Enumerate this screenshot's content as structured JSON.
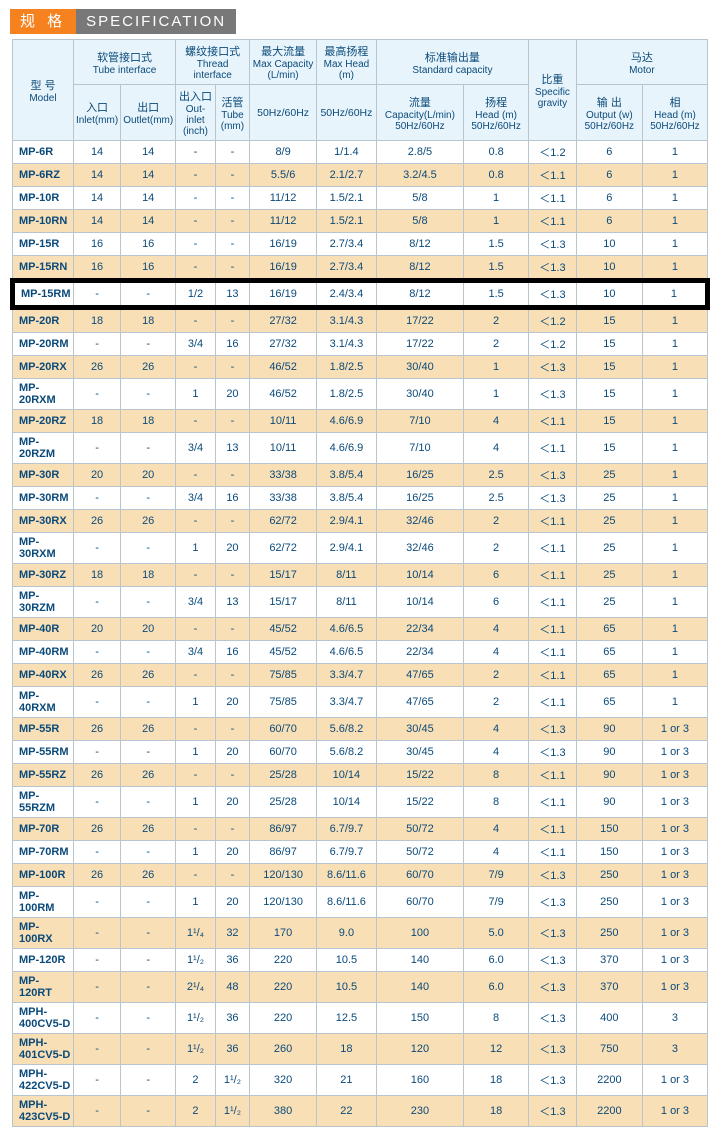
{
  "title_cn": "规 格",
  "title_en": "SPECIFICATION",
  "headers": {
    "model_cn": "型 号",
    "model_en": "Model",
    "tube_cn": "软管接口式",
    "tube_en": "Tube interface",
    "thread_cn": "螺纹接口式",
    "thread_en": "Thread interface",
    "maxcap_cn": "最大流量",
    "maxcap_en": "Max Capacity (L/min)",
    "maxhead_cn": "最高扬程",
    "maxhead_en": "Max Head (m)",
    "std_cn": "标准输出量",
    "std_en": "Standard capacity",
    "sg_cn": "比重",
    "sg_en": "Specific gravity",
    "motor_cn": "马达",
    "motor_en": "Motor",
    "inlet_cn": "入口",
    "inlet_en": "Inlet(mm)",
    "outlet_cn": "出口",
    "outlet_en": "Outlet(mm)",
    "oi_cn": "出入口",
    "oi_en": "Out-inlet (inch)",
    "tube2_cn": "活管",
    "tube2_en": "Tube (mm)",
    "hz1": "50Hz/60Hz",
    "hz2": "50Hz/60Hz",
    "cap_cn": "流量",
    "cap_en": "Capacity(L/min) 50Hz/60Hz",
    "head_cn": "扬程",
    "head_en": "Head (m) 50Hz/60Hz",
    "out_cn": "输 出",
    "out_en": "Output (w) 50Hz/60Hz",
    "ph_cn": "相",
    "ph_en": "Head (m) 50Hz/60Hz"
  },
  "rows": [
    {
      "m": "MP-6R",
      "c": [
        "14",
        "14",
        "-",
        "-",
        "8/9",
        "1/1.4",
        "2.8/5",
        "0.8",
        "＜1.2",
        "6",
        "1"
      ],
      "e": 0
    },
    {
      "m": "MP-6RZ",
      "c": [
        "14",
        "14",
        "-",
        "-",
        "5.5/6",
        "2.1/2.7",
        "3.2/4.5",
        "0.8",
        "＜1.1",
        "6",
        "1"
      ],
      "e": 1
    },
    {
      "m": "MP-10R",
      "c": [
        "14",
        "14",
        "-",
        "-",
        "11/12",
        "1.5/2.1",
        "5/8",
        "1",
        "＜1.1",
        "6",
        "1"
      ],
      "e": 0
    },
    {
      "m": "MP-10RN",
      "c": [
        "14",
        "14",
        "-",
        "-",
        "11/12",
        "1.5/2.1",
        "5/8",
        "1",
        "＜1.1",
        "6",
        "1"
      ],
      "e": 1
    },
    {
      "m": "MP-15R",
      "c": [
        "16",
        "16",
        "-",
        "-",
        "16/19",
        "2.7/3.4",
        "8/12",
        "1.5",
        "＜1.3",
        "10",
        "1"
      ],
      "e": 0
    },
    {
      "m": "MP-15RN",
      "c": [
        "16",
        "16",
        "-",
        "-",
        "16/19",
        "2.7/3.4",
        "8/12",
        "1.5",
        "＜1.3",
        "10",
        "1"
      ],
      "e": 1
    },
    {
      "m": "MP-15RM",
      "c": [
        "-",
        "-",
        "1/2",
        "13",
        "16/19",
        "2.4/3.4",
        "8/12",
        "1.5",
        "＜1.3",
        "10",
        "1"
      ],
      "hl": true
    },
    {
      "m": "MP-20R",
      "c": [
        "18",
        "18",
        "-",
        "-",
        "27/32",
        "3.1/4.3",
        "17/22",
        "2",
        "＜1.2",
        "15",
        "1"
      ],
      "e": 1
    },
    {
      "m": "MP-20RM",
      "c": [
        "-",
        "-",
        "3/4",
        "16",
        "27/32",
        "3.1/4.3",
        "17/22",
        "2",
        "＜1.2",
        "15",
        "1"
      ],
      "e": 0
    },
    {
      "m": "MP-20RX",
      "c": [
        "26",
        "26",
        "-",
        "-",
        "46/52",
        "1.8/2.5",
        "30/40",
        "1",
        "＜1.3",
        "15",
        "1"
      ],
      "e": 1
    },
    {
      "m": "MP-20RXM",
      "c": [
        "-",
        "-",
        "1",
        "20",
        "46/52",
        "1.8/2.5",
        "30/40",
        "1",
        "＜1.3",
        "15",
        "1"
      ],
      "e": 0
    },
    {
      "m": "MP-20RZ",
      "c": [
        "18",
        "18",
        "-",
        "-",
        "10/11",
        "4.6/6.9",
        "7/10",
        "4",
        "＜1.1",
        "15",
        "1"
      ],
      "e": 1
    },
    {
      "m": "MP-20RZM",
      "c": [
        "-",
        "-",
        "3/4",
        "13",
        "10/11",
        "4.6/6.9",
        "7/10",
        "4",
        "＜1.1",
        "15",
        "1"
      ],
      "e": 0
    },
    {
      "m": "MP-30R",
      "c": [
        "20",
        "20",
        "-",
        "-",
        "33/38",
        "3.8/5.4",
        "16/25",
        "2.5",
        "＜1.3",
        "25",
        "1"
      ],
      "e": 1
    },
    {
      "m": "MP-30RM",
      "c": [
        "-",
        "-",
        "3/4",
        "16",
        "33/38",
        "3.8/5.4",
        "16/25",
        "2.5",
        "＜1.3",
        "25",
        "1"
      ],
      "e": 0
    },
    {
      "m": "MP-30RX",
      "c": [
        "26",
        "26",
        "-",
        "-",
        "62/72",
        "2.9/4.1",
        "32/46",
        "2",
        "＜1.1",
        "25",
        "1"
      ],
      "e": 1
    },
    {
      "m": "MP-30RXM",
      "c": [
        "-",
        "-",
        "1",
        "20",
        "62/72",
        "2.9/4.1",
        "32/46",
        "2",
        "＜1.1",
        "25",
        "1"
      ],
      "e": 0
    },
    {
      "m": "MP-30RZ",
      "c": [
        "18",
        "18",
        "-",
        "-",
        "15/17",
        "8/11",
        "10/14",
        "6",
        "＜1.1",
        "25",
        "1"
      ],
      "e": 1
    },
    {
      "m": "MP-30RZM",
      "c": [
        "-",
        "-",
        "3/4",
        "13",
        "15/17",
        "8/11",
        "10/14",
        "6",
        "＜1.1",
        "25",
        "1"
      ],
      "e": 0
    },
    {
      "m": "MP-40R",
      "c": [
        "20",
        "20",
        "-",
        "-",
        "45/52",
        "4.6/6.5",
        "22/34",
        "4",
        "＜1.1",
        "65",
        "1"
      ],
      "e": 1
    },
    {
      "m": "MP-40RM",
      "c": [
        "-",
        "-",
        "3/4",
        "16",
        "45/52",
        "4.6/6.5",
        "22/34",
        "4",
        "＜1.1",
        "65",
        "1"
      ],
      "e": 0
    },
    {
      "m": "MP-40RX",
      "c": [
        "26",
        "26",
        "-",
        "-",
        "75/85",
        "3.3/4.7",
        "47/65",
        "2",
        "＜1.1",
        "65",
        "1"
      ],
      "e": 1
    },
    {
      "m": "MP-40RXM",
      "c": [
        "-",
        "-",
        "1",
        "20",
        "75/85",
        "3.3/4.7",
        "47/65",
        "2",
        "＜1.1",
        "65",
        "1"
      ],
      "e": 0
    },
    {
      "m": "MP-55R",
      "c": [
        "26",
        "26",
        "-",
        "-",
        "60/70",
        "5.6/8.2",
        "30/45",
        "4",
        "＜1.3",
        "90",
        "1 or 3"
      ],
      "e": 1
    },
    {
      "m": "MP-55RM",
      "c": [
        "-",
        "-",
        "1",
        "20",
        "60/70",
        "5.6/8.2",
        "30/45",
        "4",
        "＜1.3",
        "90",
        "1 or 3"
      ],
      "e": 0
    },
    {
      "m": "MP-55RZ",
      "c": [
        "26",
        "26",
        "-",
        "-",
        "25/28",
        "10/14",
        "15/22",
        "8",
        "＜1.1",
        "90",
        "1 or 3"
      ],
      "e": 1
    },
    {
      "m": "MP-55RZM",
      "c": [
        "-",
        "-",
        "1",
        "20",
        "25/28",
        "10/14",
        "15/22",
        "8",
        "＜1.1",
        "90",
        "1 or 3"
      ],
      "e": 0
    },
    {
      "m": "MP-70R",
      "c": [
        "26",
        "26",
        "-",
        "-",
        "86/97",
        "6.7/9.7",
        "50/72",
        "4",
        "＜1.1",
        "150",
        "1 or 3"
      ],
      "e": 1
    },
    {
      "m": "MP-70RM",
      "c": [
        "-",
        "-",
        "1",
        "20",
        "86/97",
        "6.7/9.7",
        "50/72",
        "4",
        "＜1.1",
        "150",
        "1 or 3"
      ],
      "e": 0
    },
    {
      "m": "MP-100R",
      "c": [
        "26",
        "26",
        "-",
        "-",
        "120/130",
        "8.6/11.6",
        "60/70",
        "7/9",
        "＜1.3",
        "250",
        "1 or 3"
      ],
      "e": 1
    },
    {
      "m": "MP-100RM",
      "c": [
        "-",
        "-",
        "1",
        "20",
        "120/130",
        "8.6/11.6",
        "60/70",
        "7/9",
        "＜1.3",
        "250",
        "1 or 3"
      ],
      "e": 0
    },
    {
      "m": "MP-100RX",
      "c": [
        "-",
        "-",
        "1¹/₄",
        "32",
        "170",
        "9.0",
        "100",
        "5.0",
        "＜1.3",
        "250",
        "1 or 3"
      ],
      "e": 1
    },
    {
      "m": "MP-120R",
      "c": [
        "-",
        "-",
        "1¹/₂",
        "36",
        "220",
        "10.5",
        "140",
        "6.0",
        "＜1.3",
        "370",
        "1 or 3"
      ],
      "e": 0
    },
    {
      "m": "MP-120RT",
      "c": [
        "-",
        "-",
        "2¹/₄",
        "48",
        "220",
        "10.5",
        "140",
        "6.0",
        "＜1.3",
        "370",
        "1 or 3"
      ],
      "e": 1
    },
    {
      "m": "MPH-400CV5-D",
      "c": [
        "-",
        "-",
        "1¹/₂",
        "36",
        "220",
        "12.5",
        "150",
        "8",
        "＜1.3",
        "400",
        "3"
      ],
      "e": 0
    },
    {
      "m": "MPH-401CV5-D",
      "c": [
        "-",
        "-",
        "1¹/₂",
        "36",
        "260",
        "18",
        "120",
        "12",
        "＜1.3",
        "750",
        "3"
      ],
      "e": 1
    },
    {
      "m": "MPH-422CV5-D",
      "c": [
        "-",
        "-",
        "2",
        "1¹/₂",
        "320",
        "21",
        "160",
        "18",
        "＜1.3",
        "2200",
        "1 or 3"
      ],
      "e": 0
    },
    {
      "m": "MPH-423CV5-D",
      "c": [
        "-",
        "-",
        "2",
        "1¹/₂",
        "380",
        "22",
        "230",
        "18",
        "＜1.3",
        "2200",
        "1 or 3"
      ],
      "e": 1
    }
  ]
}
